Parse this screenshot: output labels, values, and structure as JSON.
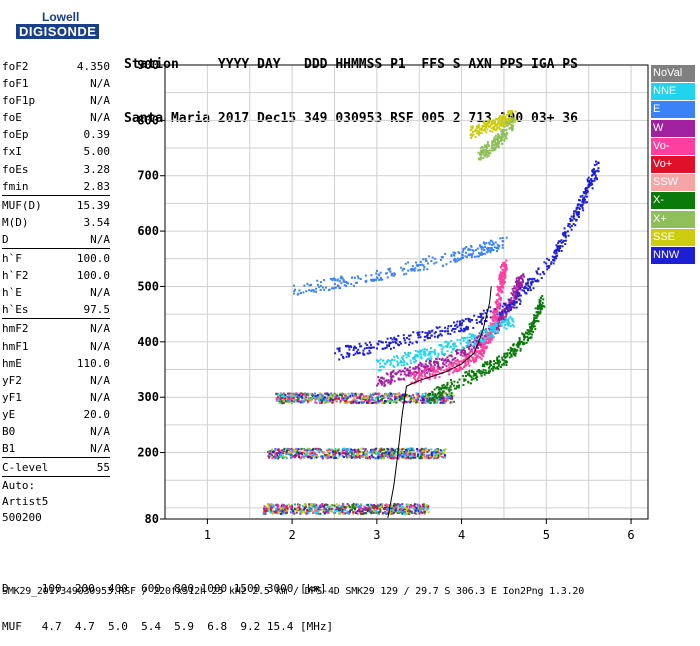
{
  "logo": {
    "line1": "Lowell",
    "line2": "DIGISONDE"
  },
  "header": {
    "line1": "Station     YYYY DAY   DDD HHMMSS P1  FFS S AXN PPS IGA PS",
    "line2": "Santa Maria 2017 Dec15 349 030953 RSF 005 2 713 100 03+ 36"
  },
  "params": [
    {
      "group": 1,
      "items": [
        {
          "k": "foF2",
          "v": "4.350"
        },
        {
          "k": "foF1",
          "v": "N/A"
        },
        {
          "k": "foF1p",
          "v": "N/A"
        },
        {
          "k": "foE",
          "v": "N/A"
        },
        {
          "k": "foEp",
          "v": "0.39"
        },
        {
          "k": "fxI",
          "v": "5.00"
        },
        {
          "k": "foEs",
          "v": "3.28"
        },
        {
          "k": "fmin",
          "v": "2.83"
        }
      ]
    },
    {
      "group": 2,
      "items": [
        {
          "k": "MUF(D)",
          "v": "15.39"
        },
        {
          "k": "M(D)",
          "v": "3.54"
        },
        {
          "k": "D",
          "v": "N/A"
        }
      ]
    },
    {
      "group": 3,
      "items": [
        {
          "k": "h`F",
          "v": "100.0"
        },
        {
          "k": "h`F2",
          "v": "100.0"
        },
        {
          "k": "h`E",
          "v": "N/A"
        },
        {
          "k": "h`Es",
          "v": "97.5"
        }
      ]
    },
    {
      "group": 4,
      "items": [
        {
          "k": "hmF2",
          "v": "N/A"
        },
        {
          "k": "hmF1",
          "v": "N/A"
        },
        {
          "k": "hmE",
          "v": "110.0"
        },
        {
          "k": "yF2",
          "v": "N/A"
        },
        {
          "k": "yF1",
          "v": "N/A"
        },
        {
          "k": "yE",
          "v": "20.0"
        },
        {
          "k": "B0",
          "v": "N/A"
        },
        {
          "k": "B1",
          "v": "N/A"
        }
      ]
    },
    {
      "group": 5,
      "items": [
        {
          "k": "C-level",
          "v": "55"
        }
      ]
    }
  ],
  "auto": [
    "Auto:",
    "Artist5",
    "500200"
  ],
  "legend": [
    {
      "label": "NoVal",
      "color": "#808080"
    },
    {
      "label": "NNE",
      "color": "#22d3ee"
    },
    {
      "label": "E",
      "color": "#3b82f6"
    },
    {
      "label": "W",
      "color": "#a020a0"
    },
    {
      "label": "Vo-",
      "color": "#ff3fa0"
    },
    {
      "label": "Vo+",
      "color": "#e0102a"
    },
    {
      "label": "SSW",
      "color": "#f5a5a5"
    },
    {
      "label": "X-",
      "color": "#0a7a0a"
    },
    {
      "label": "X+",
      "color": "#8fbf5a"
    },
    {
      "label": "SSE",
      "color": "#cccc10"
    },
    {
      "label": "NNW",
      "color": "#1e1ed2"
    }
  ],
  "bottom": {
    "line1": "D     100  200  400  600  800 1000 1500 3000 [km]",
    "line2": "MUF   4.7  4.7  5.0  5.4  5.9  6.8  9.2 15.4 [MHz]"
  },
  "footer": "SMK29_2017349030953.RSF / 220fx512h 25 kHz 2.5 km / DPS-4D SMK29 129 / 29.7 S 306.3 E Ion2Png 1.3.20",
  "chart_data": {
    "type": "scatter",
    "title": "",
    "xlabel": "",
    "ylabel": "",
    "xlim": [
      0.5,
      6.2
    ],
    "ylim": [
      80,
      900
    ],
    "xticks": [
      1,
      2,
      3,
      4,
      5,
      6
    ],
    "yticks": [
      80,
      200,
      300,
      400,
      500,
      600,
      700,
      800,
      900
    ],
    "grid": true,
    "legend_placement": "right",
    "trace_line": {
      "points": [
        [
          3.13,
          82
        ],
        [
          3.2,
          140
        ],
        [
          3.25,
          200
        ],
        [
          3.3,
          270
        ],
        [
          3.35,
          320
        ],
        [
          3.5,
          330
        ],
        [
          3.8,
          345
        ],
        [
          4.0,
          360
        ],
        [
          4.15,
          380
        ],
        [
          4.25,
          420
        ],
        [
          4.33,
          470
        ],
        [
          4.35,
          500
        ]
      ],
      "color": "#000000"
    },
    "series": [
      {
        "name": "W",
        "color": "#a020a0",
        "band": [
          [
            3.0,
            330
          ],
          [
            3.5,
            352
          ],
          [
            4.0,
            380
          ],
          [
            4.4,
            430
          ],
          [
            4.6,
            480
          ],
          [
            4.7,
            520
          ]
        ]
      },
      {
        "name": "NNW",
        "color": "#1e1ed2",
        "band": [
          [
            2.5,
            380
          ],
          [
            3.2,
            400
          ],
          [
            4.0,
            430
          ],
          [
            4.6,
            470
          ],
          [
            5.1,
            560
          ],
          [
            5.4,
            650
          ],
          [
            5.6,
            720
          ]
        ]
      },
      {
        "name": "Vo-",
        "color": "#ff3fa0",
        "band": [
          [
            3.4,
            335
          ],
          [
            3.9,
            355
          ],
          [
            4.2,
            380
          ],
          [
            4.35,
            420
          ],
          [
            4.45,
            500
          ],
          [
            4.5,
            540
          ]
        ]
      },
      {
        "name": "X-",
        "color": "#0a7a0a",
        "band": [
          [
            3.6,
            300
          ],
          [
            4.1,
            340
          ],
          [
            4.5,
            370
          ],
          [
            4.8,
            420
          ],
          [
            4.95,
            480
          ]
        ]
      },
      {
        "name": "E",
        "color": "#3b82f6",
        "band": [
          [
            2.0,
            495
          ],
          [
            3.0,
            520
          ],
          [
            4.0,
            560
          ],
          [
            4.5,
            580
          ]
        ]
      },
      {
        "name": "NNE",
        "color": "#22d3ee",
        "band": [
          [
            3.0,
            360
          ],
          [
            3.6,
            380
          ],
          [
            4.2,
            410
          ],
          [
            4.6,
            440
          ]
        ]
      },
      {
        "name": "SSE",
        "color": "#cccc10",
        "band": [
          [
            4.1,
            780
          ],
          [
            4.4,
            795
          ],
          [
            4.6,
            810
          ]
        ]
      },
      {
        "name": "X+",
        "color": "#8fbf5a",
        "band": [
          [
            4.2,
            740
          ],
          [
            4.4,
            760
          ],
          [
            4.6,
            800
          ]
        ]
      }
    ],
    "sporadic_layers": [
      {
        "h": 100,
        "fmin": 1.65,
        "fmax": 3.6
      },
      {
        "h": 200,
        "fmin": 1.7,
        "fmax": 3.8
      },
      {
        "h": 300,
        "fmin": 1.8,
        "fmax": 3.9
      }
    ]
  }
}
